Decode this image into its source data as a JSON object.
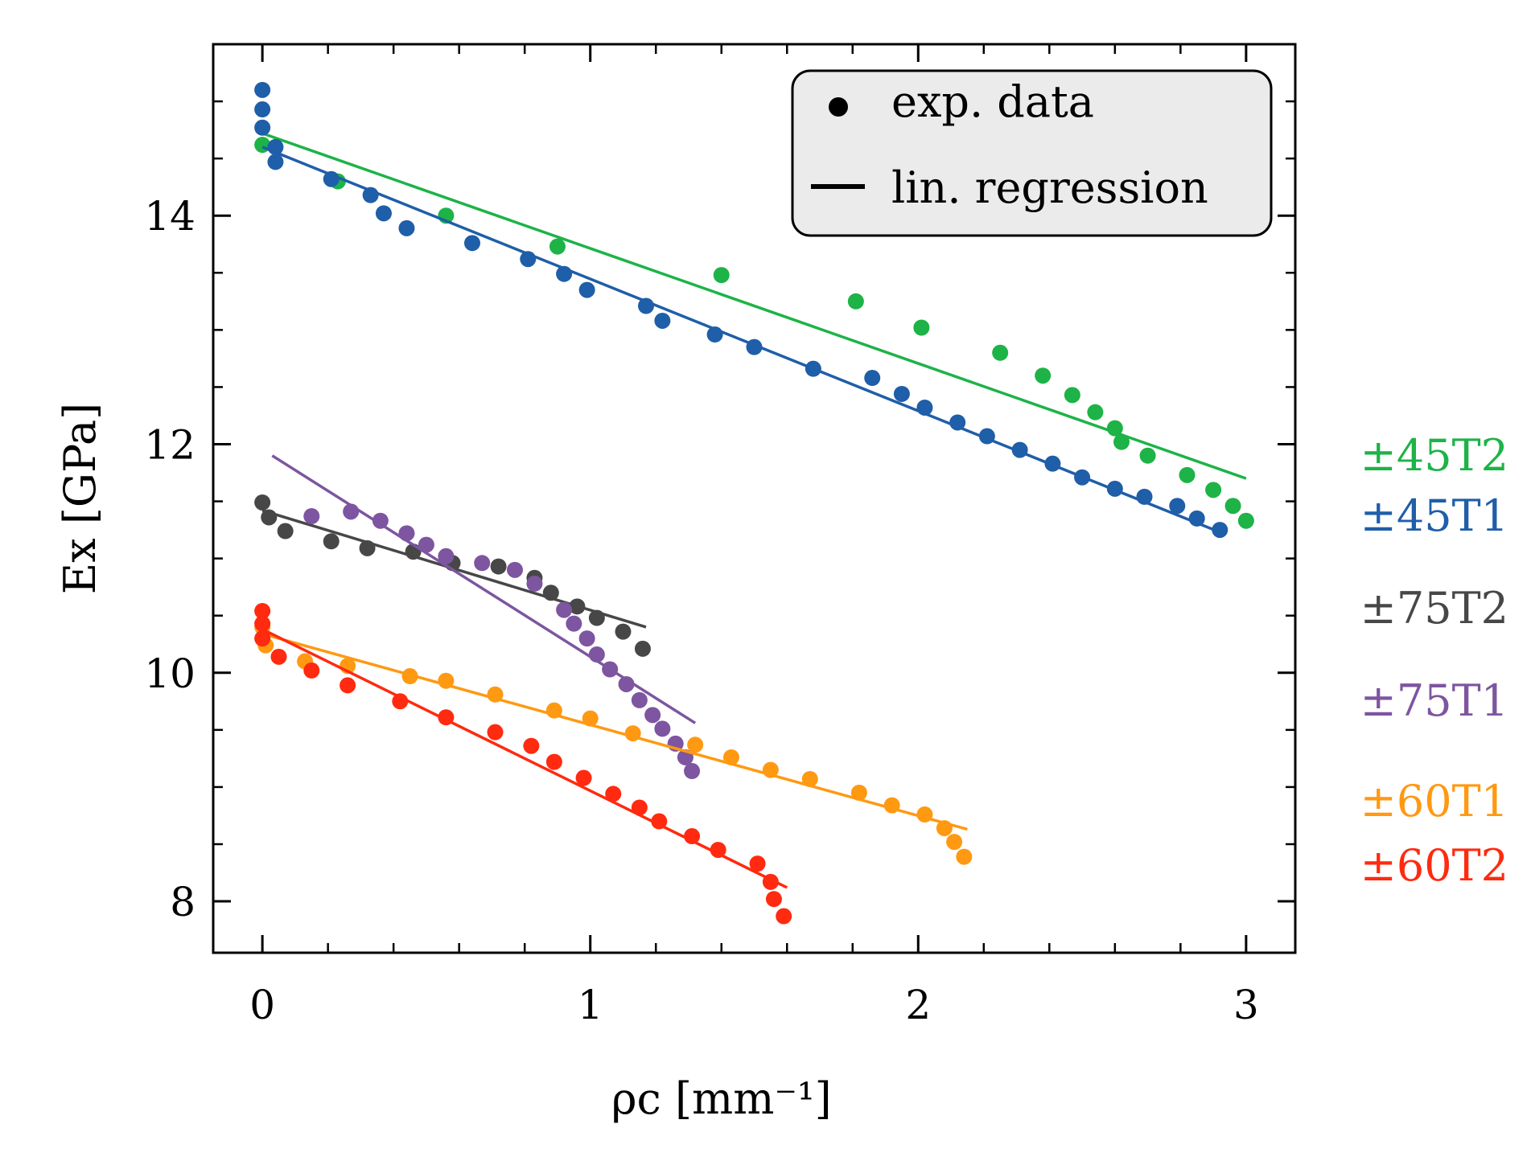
{
  "chart_data": {
    "type": "scatter",
    "xlabel": "ρc [mm⁻¹]",
    "ylabel": "Ex [GPa]",
    "xlim": [
      -0.15,
      3.15
    ],
    "ylim": [
      7.55,
      15.5
    ],
    "xticks": [
      0,
      1,
      2,
      3
    ],
    "yticks": [
      8,
      10,
      12,
      14
    ],
    "legend": {
      "position": "top-right",
      "entries": [
        {
          "marker": "dot",
          "label": "exp. data"
        },
        {
          "marker": "line",
          "label": "lin. regression"
        }
      ]
    },
    "series": [
      {
        "name": "±45T2",
        "color": "#1db347",
        "points": [
          [
            0.0,
            14.62
          ],
          [
            0.23,
            14.3
          ],
          [
            0.56,
            14.0
          ],
          [
            0.9,
            13.73
          ],
          [
            1.4,
            13.48
          ],
          [
            1.81,
            13.25
          ],
          [
            2.01,
            13.02
          ],
          [
            2.25,
            12.8
          ],
          [
            2.38,
            12.6
          ],
          [
            2.47,
            12.43
          ],
          [
            2.54,
            12.28
          ],
          [
            2.6,
            12.14
          ],
          [
            2.62,
            12.02
          ],
          [
            2.7,
            11.9
          ],
          [
            2.82,
            11.73
          ],
          [
            2.9,
            11.6
          ],
          [
            2.96,
            11.46
          ],
          [
            3.0,
            11.33
          ]
        ],
        "fit": [
          [
            0.0,
            14.72
          ],
          [
            3.0,
            11.7
          ]
        ]
      },
      {
        "name": "±45T1",
        "color": "#1f5ea8",
        "points": [
          [
            0.0,
            15.1
          ],
          [
            0.0,
            14.93
          ],
          [
            0.0,
            14.77
          ],
          [
            0.04,
            14.6
          ],
          [
            0.04,
            14.47
          ],
          [
            0.21,
            14.32
          ],
          [
            0.33,
            14.18
          ],
          [
            0.37,
            14.02
          ],
          [
            0.44,
            13.89
          ],
          [
            0.64,
            13.76
          ],
          [
            0.81,
            13.62
          ],
          [
            0.92,
            13.49
          ],
          [
            0.99,
            13.35
          ],
          [
            1.17,
            13.21
          ],
          [
            1.22,
            13.08
          ],
          [
            1.38,
            12.96
          ],
          [
            1.5,
            12.85
          ],
          [
            1.68,
            12.66
          ],
          [
            1.86,
            12.58
          ],
          [
            1.95,
            12.44
          ],
          [
            2.02,
            12.32
          ],
          [
            2.12,
            12.19
          ],
          [
            2.21,
            12.07
          ],
          [
            2.31,
            11.95
          ],
          [
            2.41,
            11.83
          ],
          [
            2.5,
            11.71
          ],
          [
            2.6,
            11.61
          ],
          [
            2.69,
            11.54
          ],
          [
            2.79,
            11.46
          ],
          [
            2.85,
            11.35
          ],
          [
            2.92,
            11.25
          ]
        ],
        "fit": [
          [
            0.0,
            14.6
          ],
          [
            2.92,
            11.23
          ]
        ]
      },
      {
        "name": "±75T2",
        "color": "#474747",
        "points": [
          [
            0.0,
            11.49
          ],
          [
            0.02,
            11.36
          ],
          [
            0.07,
            11.24
          ],
          [
            0.21,
            11.15
          ],
          [
            0.32,
            11.09
          ],
          [
            0.46,
            11.06
          ],
          [
            0.58,
            10.96
          ],
          [
            0.72,
            10.93
          ],
          [
            0.83,
            10.83
          ],
          [
            0.88,
            10.7
          ],
          [
            0.96,
            10.58
          ],
          [
            1.02,
            10.48
          ],
          [
            1.1,
            10.36
          ],
          [
            1.16,
            10.21
          ]
        ],
        "fit": [
          [
            0.0,
            11.42
          ],
          [
            1.17,
            10.4
          ]
        ]
      },
      {
        "name": "±75T1",
        "color": "#7d55a0",
        "points": [
          [
            0.15,
            11.37
          ],
          [
            0.27,
            11.41
          ],
          [
            0.36,
            11.33
          ],
          [
            0.44,
            11.22
          ],
          [
            0.5,
            11.12
          ],
          [
            0.56,
            11.02
          ],
          [
            0.67,
            10.96
          ],
          [
            0.77,
            10.9
          ],
          [
            0.83,
            10.78
          ],
          [
            0.92,
            10.55
          ],
          [
            0.95,
            10.43
          ],
          [
            0.99,
            10.3
          ],
          [
            1.02,
            10.16
          ],
          [
            1.06,
            10.03
          ],
          [
            1.11,
            9.9
          ],
          [
            1.15,
            9.76
          ],
          [
            1.19,
            9.63
          ],
          [
            1.22,
            9.51
          ],
          [
            1.26,
            9.38
          ],
          [
            1.29,
            9.26
          ],
          [
            1.31,
            9.14
          ]
        ],
        "fit": [
          [
            0.03,
            11.9
          ],
          [
            1.32,
            9.56
          ]
        ]
      },
      {
        "name": "±60T1",
        "color": "#ff9912",
        "points": [
          [
            0.0,
            10.4
          ],
          [
            0.01,
            10.24
          ],
          [
            0.13,
            10.1
          ],
          [
            0.26,
            10.06
          ],
          [
            0.45,
            9.97
          ],
          [
            0.56,
            9.93
          ],
          [
            0.71,
            9.81
          ],
          [
            0.89,
            9.67
          ],
          [
            1.0,
            9.6
          ],
          [
            1.13,
            9.47
          ],
          [
            1.32,
            9.37
          ],
          [
            1.43,
            9.26
          ],
          [
            1.55,
            9.15
          ],
          [
            1.67,
            9.07
          ],
          [
            1.82,
            8.95
          ],
          [
            1.92,
            8.84
          ],
          [
            2.02,
            8.76
          ],
          [
            2.08,
            8.64
          ],
          [
            2.11,
            8.52
          ],
          [
            2.14,
            8.39
          ]
        ],
        "fit": [
          [
            0.0,
            10.34
          ],
          [
            2.15,
            8.63
          ]
        ]
      },
      {
        "name": "±60T2",
        "color": "#ff2a0f",
        "points": [
          [
            0.0,
            10.54
          ],
          [
            0.0,
            10.43
          ],
          [
            0.0,
            10.3
          ],
          [
            0.05,
            10.14
          ],
          [
            0.15,
            10.02
          ],
          [
            0.26,
            9.89
          ],
          [
            0.42,
            9.75
          ],
          [
            0.56,
            9.61
          ],
          [
            0.71,
            9.48
          ],
          [
            0.82,
            9.36
          ],
          [
            0.89,
            9.22
          ],
          [
            0.98,
            9.08
          ],
          [
            1.07,
            8.94
          ],
          [
            1.15,
            8.82
          ],
          [
            1.21,
            8.7
          ],
          [
            1.31,
            8.57
          ],
          [
            1.39,
            8.45
          ],
          [
            1.51,
            8.33
          ],
          [
            1.55,
            8.17
          ],
          [
            1.56,
            8.02
          ],
          [
            1.59,
            7.87
          ]
        ],
        "fit": [
          [
            0.0,
            10.38
          ],
          [
            1.6,
            8.12
          ]
        ]
      }
    ],
    "series_labels_order": [
      "±45T2",
      "±45T1",
      "±75T2",
      "±75T1",
      "±60T1",
      "±60T2"
    ]
  }
}
